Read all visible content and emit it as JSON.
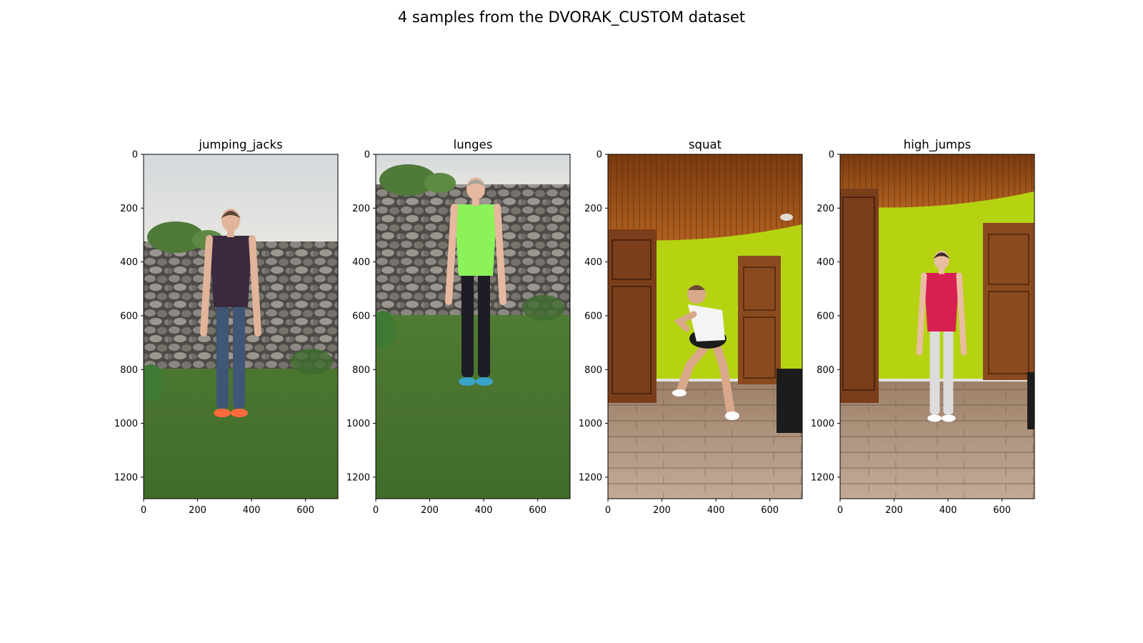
{
  "title": "4 samples from the DVORAK_CUSTOM dataset",
  "image_size": {
    "width": 720,
    "height": 1280
  },
  "x_ticks": [
    0,
    200,
    400,
    600
  ],
  "y_ticks": [
    0,
    200,
    400,
    600,
    800,
    1000,
    1200
  ],
  "panels": [
    {
      "title": "jumping_jacks",
      "scene": "garden",
      "person": {
        "top": "#3b2a3e",
        "bottom": "#3f5677",
        "skin": "#e2b49a",
        "hair": "#5a4636",
        "shoe": "#ff6a3d",
        "pose": "stand-side"
      }
    },
    {
      "title": "lunges",
      "scene": "garden",
      "person": {
        "top": "#8cf25a",
        "bottom": "#1e1c24",
        "skin": "#e6b8a0",
        "hair": "#a9a39a",
        "shoe": "#3aa3c9",
        "pose": "stand-front"
      }
    },
    {
      "title": "squat",
      "scene": "room",
      "person": {
        "top": "#f4f4f4",
        "bottom": "#1b1b1b",
        "skin": "#d9a88a",
        "hair": "#6a4a32",
        "shoe": "#ffffff",
        "pose": "squat"
      }
    },
    {
      "title": "high_jumps",
      "scene": "room",
      "person": {
        "top": "#d81f52",
        "bottom": "#dcdcdc",
        "skin": "#e9bda2",
        "hair": "#3a2a22",
        "shoe": "#ffffff",
        "pose": "stand-front"
      }
    }
  ]
}
